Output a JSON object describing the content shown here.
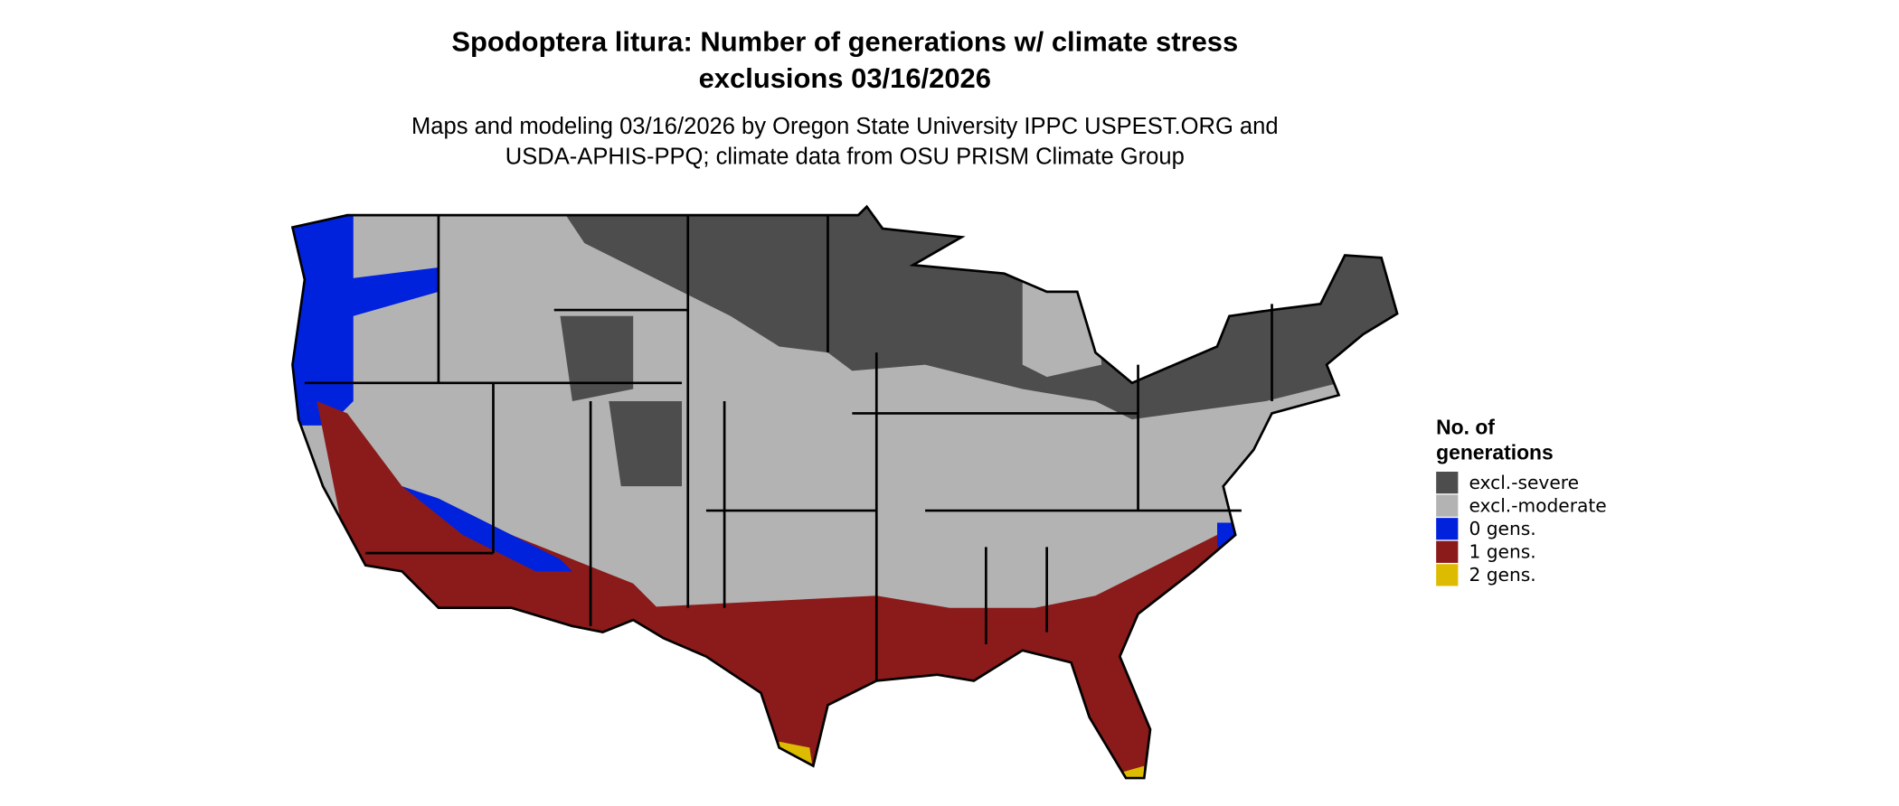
{
  "header": {
    "title": [
      "Spodoptera litura: Number of generations w/ climate stress",
      "exclusions 03/16/2026"
    ],
    "subtitle": [
      "Maps and modeling 03/16/2026 by Oregon State University IPPC USPEST.ORG and",
      "USDA-APHIS-PPQ; climate data from OSU PRISM Climate Group"
    ]
  },
  "legend": {
    "title": [
      "No. of",
      "generations"
    ],
    "items": [
      {
        "label": "excl.-severe",
        "color": "#4d4d4d"
      },
      {
        "label": "excl.-moderate",
        "color": "#b3b3b3"
      },
      {
        "label": "0 gens.",
        "color": "#0022dd"
      },
      {
        "label": "1 gens.",
        "color": "#8b1a1a"
      },
      {
        "label": "2 gens.",
        "color": "#ddbb00"
      }
    ]
  }
}
